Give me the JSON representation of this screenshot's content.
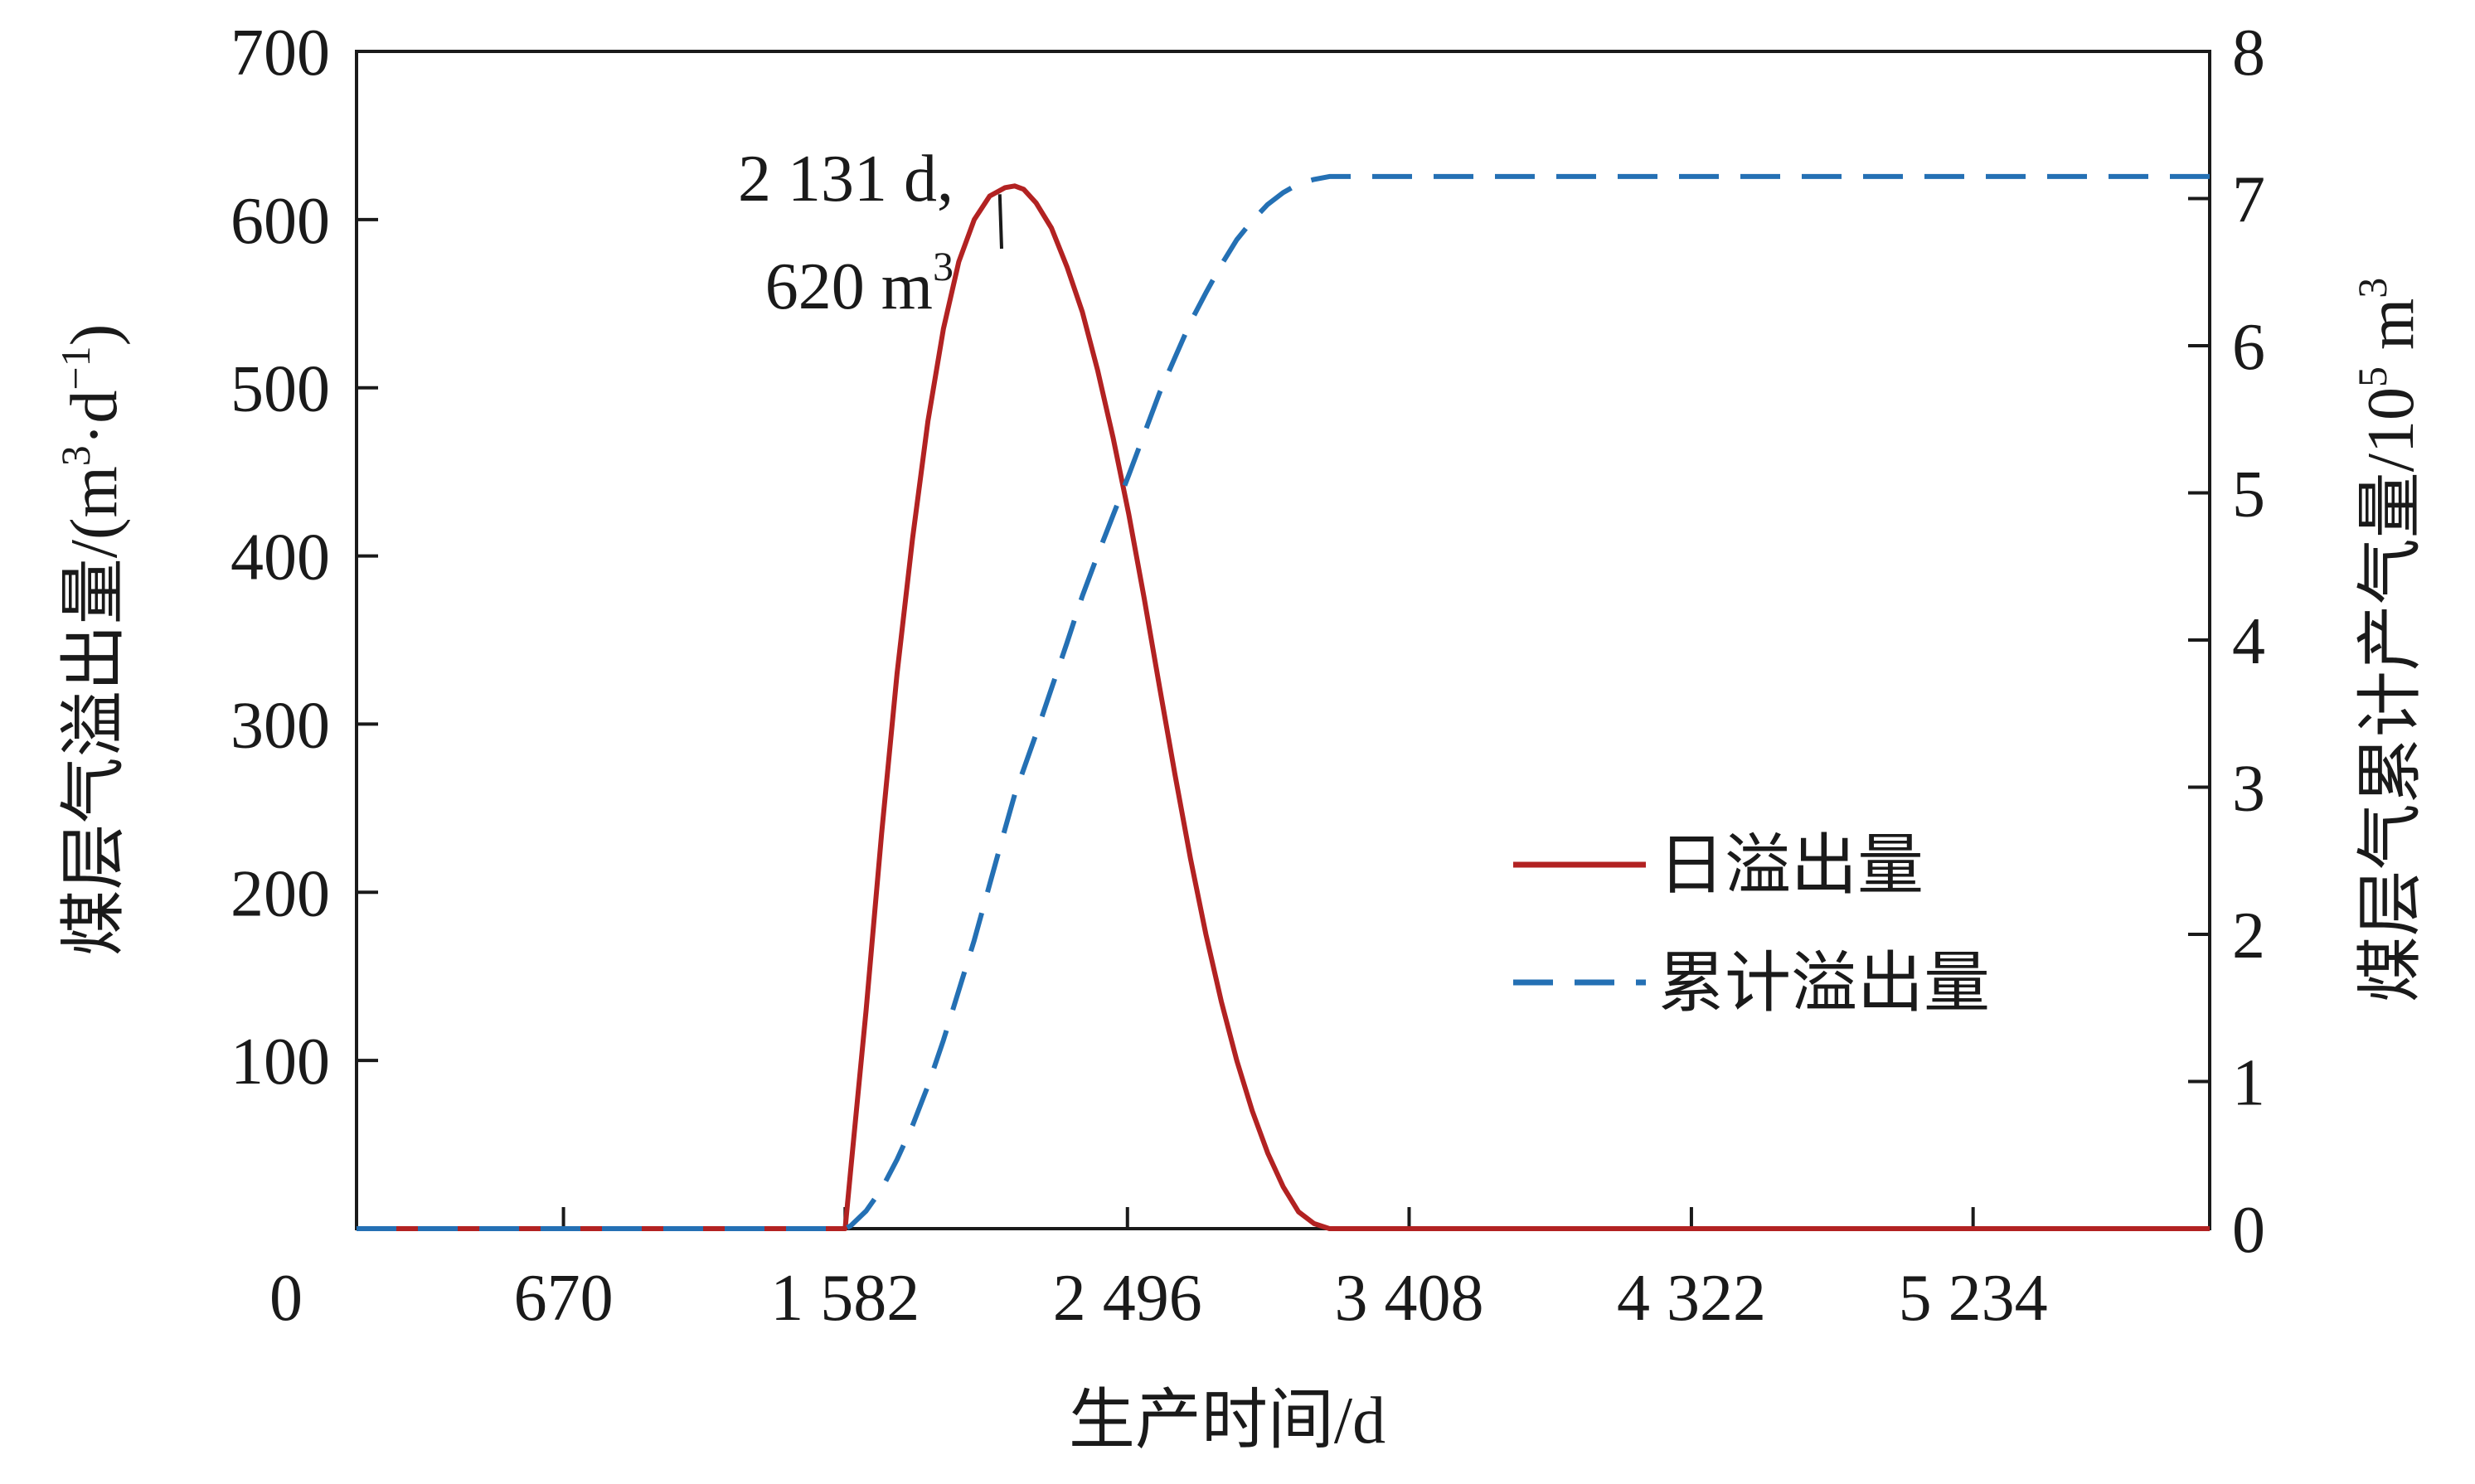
{
  "chart_data": {
    "type": "line",
    "title": "",
    "xlabel": "生产时间/d",
    "ylabel_left": "煤层气溢出量/(m³·d⁻¹)",
    "ylabel_right": "煤层气累计产气量/10⁵ m³",
    "ylabel_left_parts": {
      "main": "煤层气溢出量/(m",
      "sup1": "3",
      "mid": "·d",
      "sup2": "−1",
      "end": ")"
    },
    "ylabel_right_parts": {
      "main": "煤层气累计产气量/10",
      "sup": "5",
      "end": " m",
      "sup2": "3"
    },
    "xlim": [
      0,
      6000
    ],
    "ylim_left": [
      0,
      700
    ],
    "ylim_right": [
      0,
      8
    ],
    "x_ticks": [
      0,
      670,
      1582,
      2496,
      3408,
      4322,
      5234
    ],
    "x_tick_labels": [
      "0",
      "670",
      "1 582",
      "2 496",
      "3 408",
      "4 322",
      "5 234"
    ],
    "y_left_ticks": [
      100,
      200,
      300,
      400,
      500,
      600,
      700
    ],
    "y_left_tick_labels": [
      "100",
      "200",
      "300",
      "400",
      "500",
      "600",
      "700"
    ],
    "y_right_ticks": [
      0,
      1,
      2,
      3,
      4,
      5,
      6,
      7,
      8
    ],
    "y_right_tick_labels": [
      "0",
      "1",
      "2",
      "3",
      "4",
      "5",
      "6",
      "7",
      "8"
    ],
    "legend_position": "center-right",
    "series": [
      {
        "name": "日溢出量",
        "axis": "left",
        "style": "solid",
        "color": "#b22222",
        "x": [
          0,
          1582,
          1600,
          1650,
          1700,
          1750,
          1800,
          1850,
          1900,
          1950,
          2000,
          2050,
          2100,
          2131,
          2160,
          2200,
          2250,
          2300,
          2350,
          2400,
          2450,
          2500,
          2550,
          2600,
          2650,
          2700,
          2750,
          2800,
          2850,
          2900,
          2950,
          3000,
          3050,
          3100,
          3150,
          3200,
          3250,
          3300,
          3350,
          3408,
          3500,
          6000
        ],
        "values": [
          0,
          0,
          35,
          130,
          235,
          330,
          410,
          480,
          535,
          575,
          600,
          614,
          619,
          620,
          618,
          610,
          595,
          572,
          545,
          510,
          470,
          425,
          375,
          322,
          270,
          220,
          175,
          135,
          100,
          70,
          45,
          25,
          10,
          3,
          0,
          0,
          0,
          0,
          0,
          0,
          0,
          0
        ]
      },
      {
        "name": "累计溢出量",
        "axis": "right",
        "style": "dashed",
        "color": "#2470b4",
        "x": [
          0,
          1582,
          1600,
          1650,
          1700,
          1750,
          1800,
          1850,
          1900,
          1950,
          2000,
          2050,
          2100,
          2131,
          2200,
          2250,
          2300,
          2350,
          2400,
          2450,
          2500,
          2550,
          2600,
          2650,
          2700,
          2750,
          2800,
          2850,
          2900,
          2950,
          3000,
          3050,
          3100,
          3150,
          3250,
          3400,
          6000
        ],
        "values": [
          0,
          0,
          0.02,
          0.12,
          0.27,
          0.47,
          0.7,
          0.97,
          1.28,
          1.62,
          1.96,
          2.34,
          2.72,
          2.95,
          3.36,
          3.67,
          3.98,
          4.3,
          4.58,
          4.85,
          5.12,
          5.4,
          5.68,
          5.92,
          6.16,
          6.36,
          6.55,
          6.72,
          6.85,
          6.96,
          7.04,
          7.1,
          7.13,
          7.15,
          7.15,
          7.15,
          7.15
        ]
      }
    ],
    "annotation": {
      "line1": "2 131 d,",
      "line2": "620 m",
      "line2_sup": "3",
      "point": {
        "x": 2131,
        "y": 620
      }
    }
  }
}
